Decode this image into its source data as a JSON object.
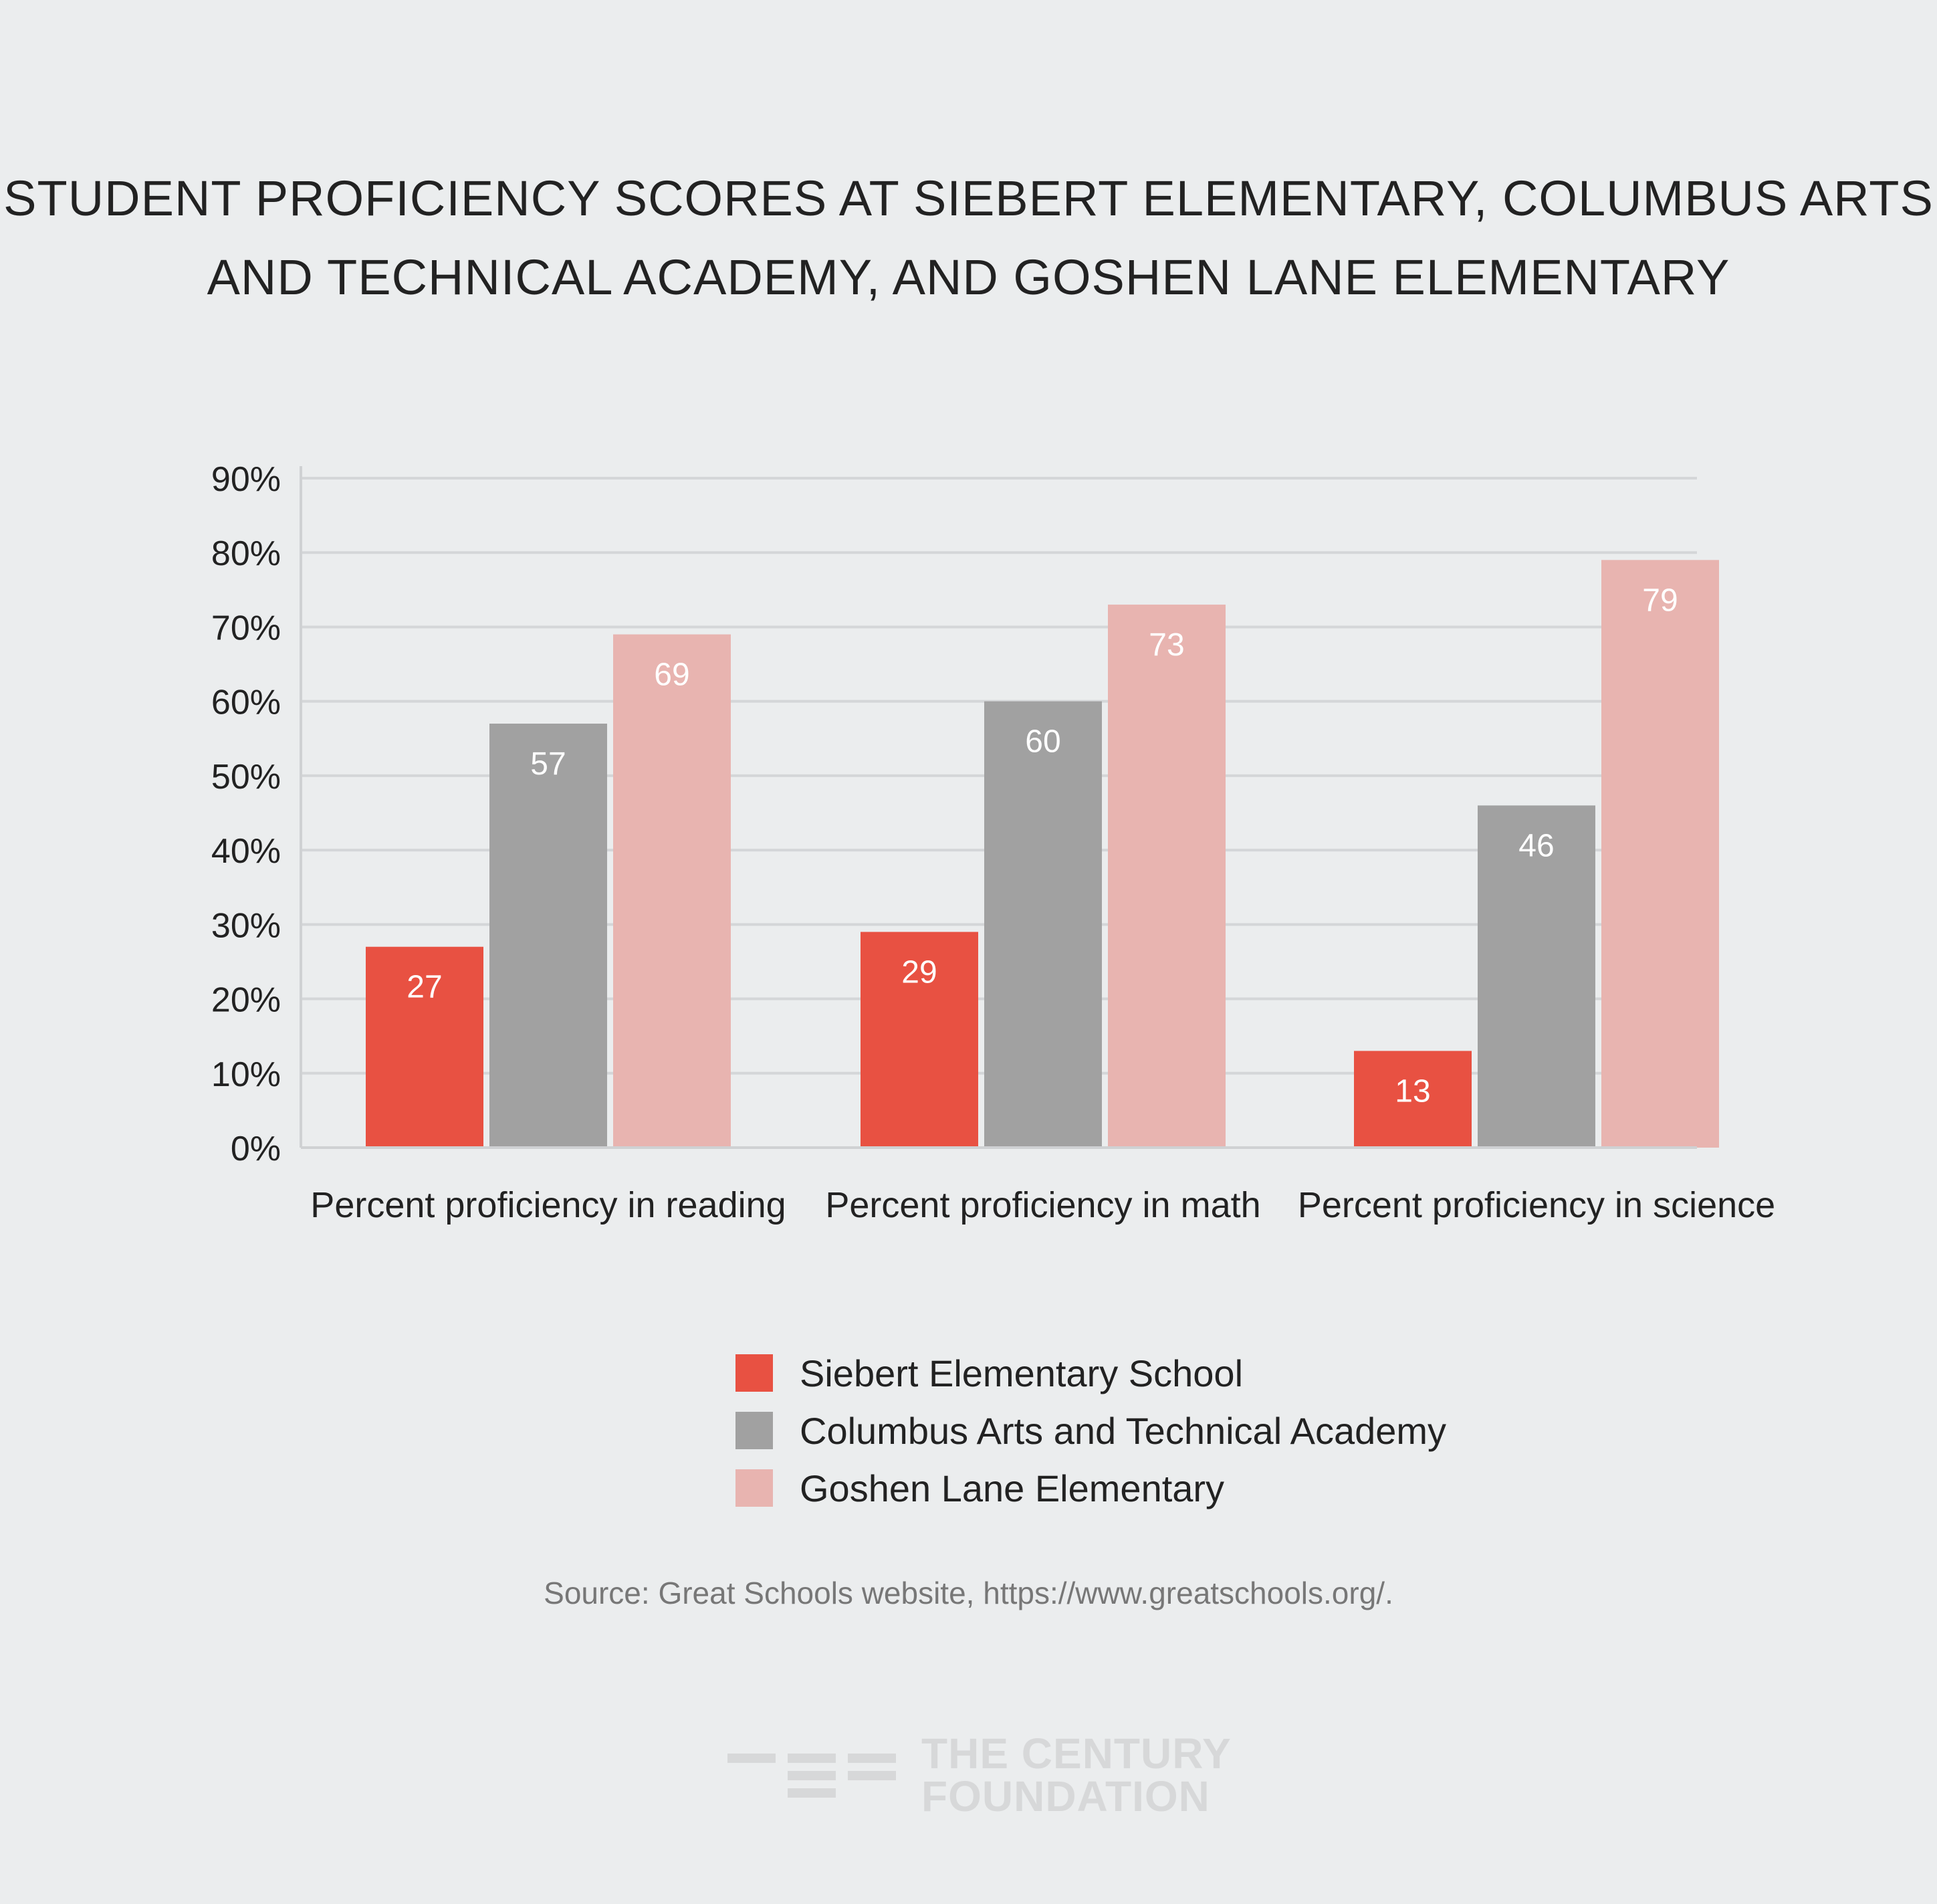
{
  "title_lines": [
    "STUDENT PROFICIENCY SCORES AT SIEBERT ELEMENTARY, COLUMBUS ARTS",
    "AND TECHNICAL ACADEMY, AND GOSHEN LANE ELEMENTARY"
  ],
  "chart_data": {
    "type": "bar",
    "title": "STUDENT PROFICIENCY SCORES AT SIEBERT ELEMENTARY, COLUMBUS ARTS AND TECHNICAL ACADEMY, AND GOSHEN LANE ELEMENTARY",
    "categories": [
      "Percent proficiency in reading",
      "Percent proficiency in math",
      "Percent proficiency in science"
    ],
    "series": [
      {
        "name": "Siebert Elementary School",
        "color": "#e85142",
        "values": [
          27,
          29,
          13
        ]
      },
      {
        "name": "Columbus Arts and Technical Academy",
        "color": "#a1a1a1",
        "values": [
          57,
          60,
          46
        ]
      },
      {
        "name": "Goshen Lane Elementary",
        "color": "#e8b4b0",
        "values": [
          69,
          73,
          79
        ]
      }
    ],
    "y_ticks": [
      "0%",
      "10%",
      "20%",
      "30%",
      "40%",
      "50%",
      "60%",
      "70%",
      "80%",
      "90%"
    ],
    "ylim": [
      0,
      90
    ],
    "xlabel": "",
    "ylabel": "",
    "grid": true,
    "legend_position": "bottom-center"
  },
  "source": "Source: Great Schools website, https://www.greatschools.org/.",
  "logo": {
    "line1": "THE CENTURY",
    "line2": "FOUNDATION",
    "color": "#d7d8d9"
  }
}
